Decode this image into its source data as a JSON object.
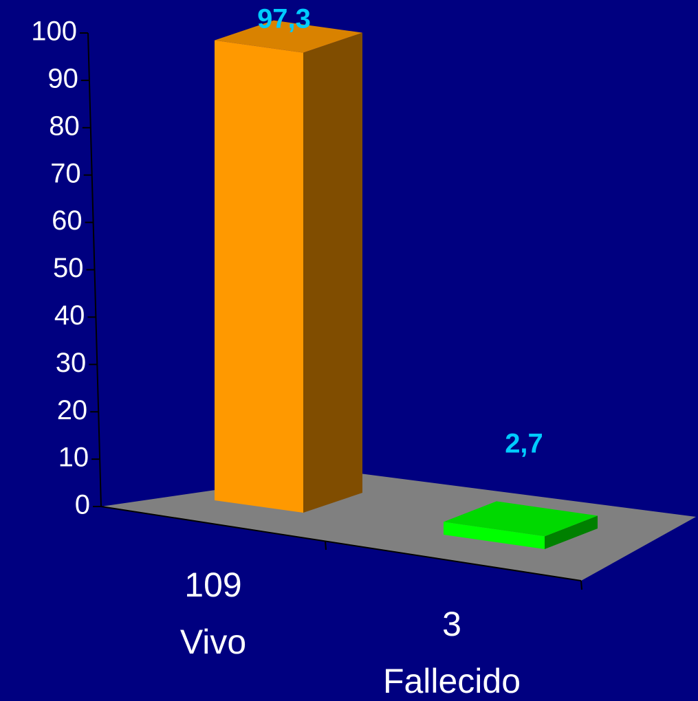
{
  "chart_data": {
    "type": "bar3d",
    "categories": [
      "Vivo",
      "Fallecido"
    ],
    "counts": [
      109,
      3
    ],
    "values": [
      97.3,
      2.7
    ],
    "value_labels": [
      "97,3",
      "2,7"
    ],
    "colors": [
      "#ff9900",
      "#00ff00"
    ],
    "ylim": [
      0,
      100
    ],
    "yticks": [
      0,
      10,
      20,
      30,
      40,
      50,
      60,
      70,
      80,
      90,
      100
    ]
  }
}
